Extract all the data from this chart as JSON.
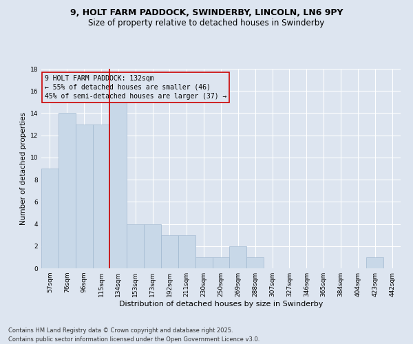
{
  "title_line1": "9, HOLT FARM PADDOCK, SWINDERBY, LINCOLN, LN6 9PY",
  "title_line2": "Size of property relative to detached houses in Swinderby",
  "xlabel": "Distribution of detached houses by size in Swinderby",
  "ylabel": "Number of detached properties",
  "categories": [
    "57sqm",
    "76sqm",
    "96sqm",
    "115sqm",
    "134sqm",
    "153sqm",
    "173sqm",
    "192sqm",
    "211sqm",
    "230sqm",
    "250sqm",
    "269sqm",
    "288sqm",
    "307sqm",
    "327sqm",
    "346sqm",
    "365sqm",
    "384sqm",
    "404sqm",
    "423sqm",
    "442sqm"
  ],
  "values": [
    9,
    14,
    13,
    13,
    15,
    4,
    4,
    3,
    3,
    1,
    1,
    2,
    1,
    0,
    0,
    0,
    0,
    0,
    0,
    1,
    0
  ],
  "bar_color": "#c8d8e8",
  "bar_edge_color": "#a0b8d0",
  "vline_x": 4,
  "vline_color": "#cc0000",
  "annotation_text": "9 HOLT FARM PADDOCK: 132sqm\n← 55% of detached houses are smaller (46)\n45% of semi-detached houses are larger (37) →",
  "annotation_box_edge": "#cc0000",
  "ylim": [
    0,
    18
  ],
  "yticks": [
    0,
    2,
    4,
    6,
    8,
    10,
    12,
    14,
    16,
    18
  ],
  "background_color": "#dde5f0",
  "grid_color": "#ffffff",
  "footer_line1": "Contains HM Land Registry data © Crown copyright and database right 2025.",
  "footer_line2": "Contains public sector information licensed under the Open Government Licence v3.0.",
  "title_fontsize": 9,
  "subtitle_fontsize": 8.5,
  "xlabel_fontsize": 8,
  "ylabel_fontsize": 7.5,
  "tick_fontsize": 6.5,
  "footer_fontsize": 6,
  "annotation_fontsize": 7
}
